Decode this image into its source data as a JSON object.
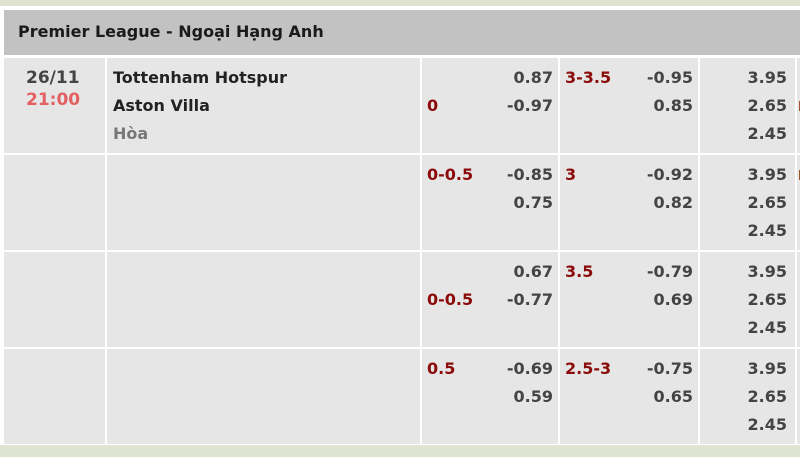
{
  "league": "Premier League - Ngoại Hạng Anh",
  "match": {
    "date": "26/11",
    "time": "21:00",
    "home": "Tottenham Hotspur",
    "away": "Aston Villa",
    "draw": "Hòa"
  },
  "rows": [
    {
      "hdp": {
        "line": "0",
        "line_row": 1,
        "home": "0.87",
        "away": "-0.97"
      },
      "ou": {
        "line": "3-3.5",
        "over": "-0.95",
        "under": "0.85"
      },
      "x12": {
        "home": "3.95",
        "away": "2.65",
        "draw": "2.45"
      }
    },
    {
      "hdp": {
        "line": "0-0.5",
        "line_row": 0,
        "home": "-0.85",
        "away": "0.75"
      },
      "ou": {
        "line": "3",
        "over": "-0.92",
        "under": "0.82"
      },
      "x12": {
        "home": "3.95",
        "away": "2.65",
        "draw": "2.45"
      }
    },
    {
      "hdp": {
        "line": "0-0.5",
        "line_row": 1,
        "home": "0.67",
        "away": "-0.77"
      },
      "ou": {
        "line": "3.5",
        "over": "-0.79",
        "under": "0.69"
      },
      "x12": {
        "home": "3.95",
        "away": "2.65",
        "draw": "2.45"
      }
    },
    {
      "hdp": {
        "line": "0.5",
        "line_row": 0,
        "home": "-0.69",
        "away": "0.59"
      },
      "ou": {
        "line": "2.5-3",
        "over": "-0.75",
        "under": "0.65"
      },
      "x12": {
        "home": "3.95",
        "away": "2.65",
        "draw": "2.45"
      }
    }
  ],
  "colors": {
    "header_bg": "#c2c2c2",
    "cell_bg": "#e6e6e6",
    "line_red": "#8b0a0a",
    "time_red": "#e46060",
    "odds": "#444444"
  }
}
